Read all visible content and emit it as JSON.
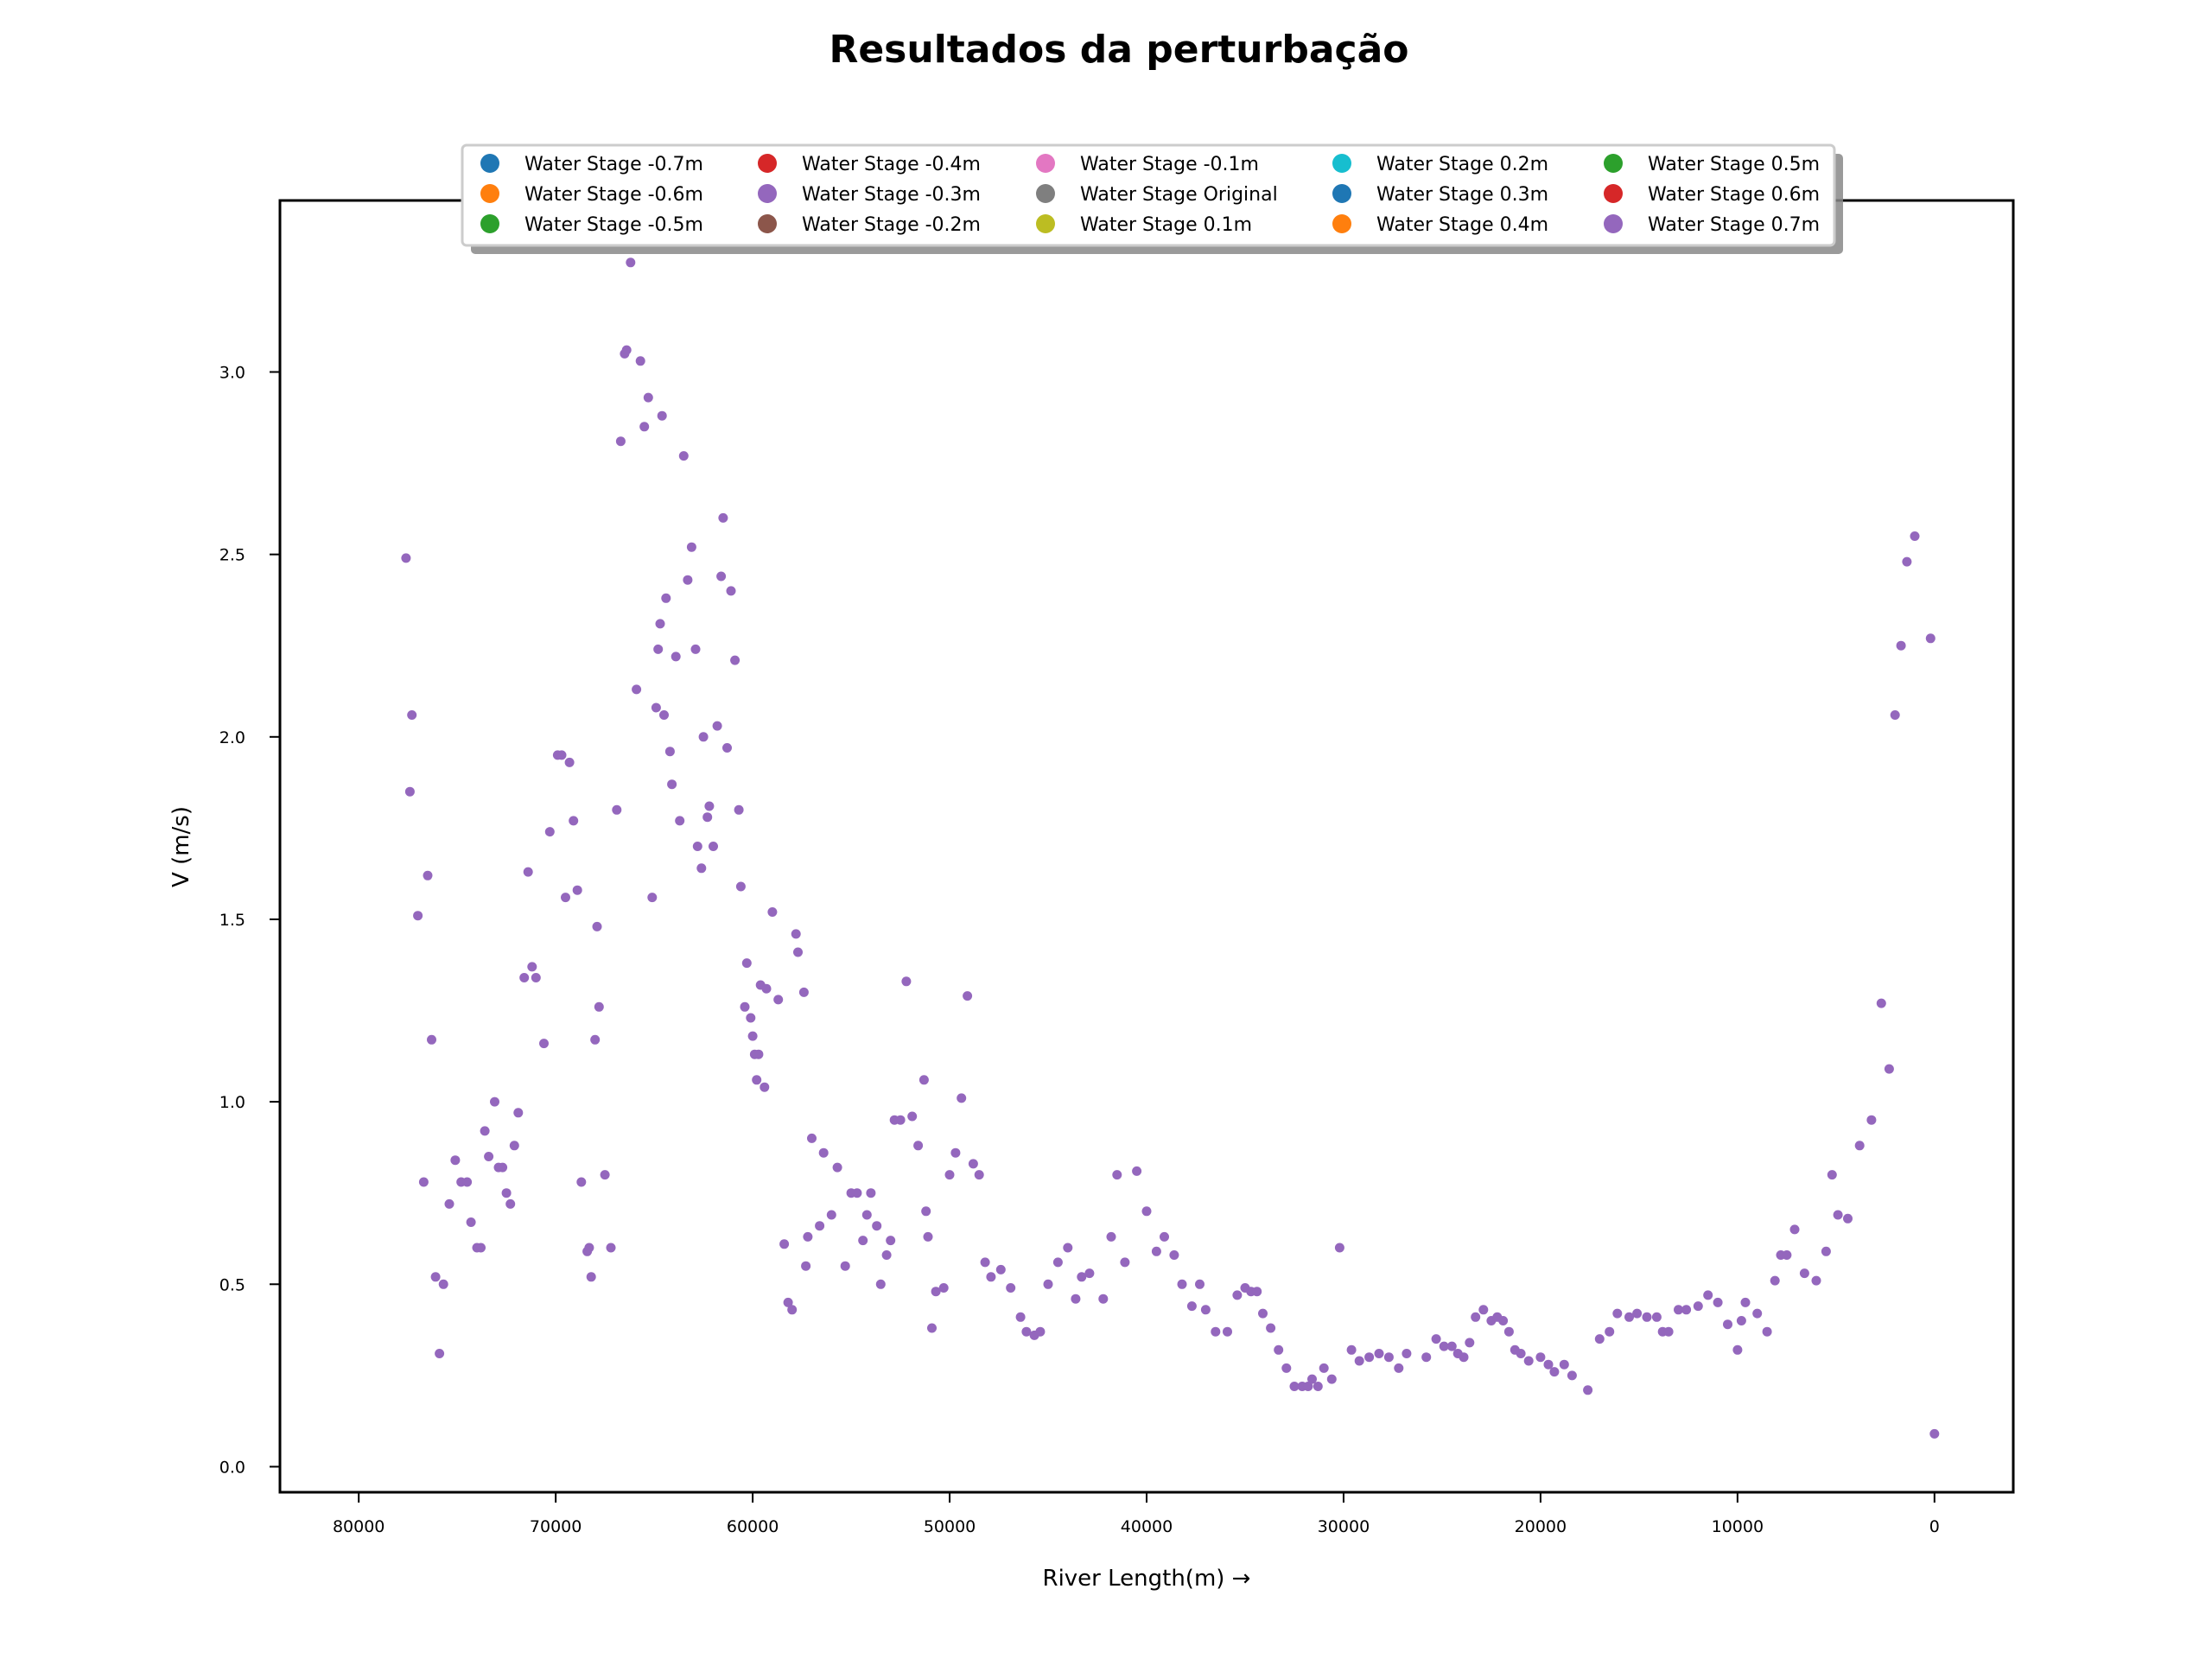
{
  "chart_data": {
    "type": "scatter",
    "title": "Resultados da perturbação",
    "xlabel": "River Length(m) →",
    "ylabel": "V (m/s)",
    "xlim": [
      84000,
      -4000
    ],
    "ylim": [
      -0.07,
      3.47
    ],
    "x_inverted": true,
    "x_ticks": [
      80000,
      70000,
      60000,
      50000,
      40000,
      30000,
      20000,
      10000,
      0
    ],
    "y_ticks": [
      0.0,
      0.5,
      1.0,
      1.5,
      2.0,
      2.5,
      3.0
    ],
    "x_tick_labels": [
      "80000",
      "70000",
      "60000",
      "50000",
      "40000",
      "30000",
      "20000",
      "10000",
      "0"
    ],
    "y_tick_labels": [
      "0.0",
      "0.5",
      "1.0",
      "1.5",
      "2.0",
      "2.5",
      "3.0"
    ],
    "grid": false,
    "legend_position": "top-center",
    "legend_columns": 5,
    "series": [
      {
        "name": "Water Stage -0.7m",
        "color": "#1f77b4"
      },
      {
        "name": "Water Stage -0.6m",
        "color": "#ff7f0e"
      },
      {
        "name": "Water Stage -0.5m",
        "color": "#2ca02c"
      },
      {
        "name": "Water Stage -0.4m",
        "color": "#d62728"
      },
      {
        "name": "Water Stage -0.3m",
        "color": "#9467bd"
      },
      {
        "name": "Water Stage -0.2m",
        "color": "#8c564b"
      },
      {
        "name": "Water Stage -0.1m",
        "color": "#e377c2"
      },
      {
        "name": "Water Stage Original",
        "color": "#7f7f7f"
      },
      {
        "name": "Water Stage 0.1m",
        "color": "#bcbd22"
      },
      {
        "name": "Water Stage 0.2m",
        "color": "#17becf"
      },
      {
        "name": "Water Stage 0.3m",
        "color": "#1f77b4"
      },
      {
        "name": "Water Stage 0.4m",
        "color": "#ff7f0e"
      },
      {
        "name": "Water Stage 0.5m",
        "color": "#2ca02c"
      },
      {
        "name": "Water Stage 0.6m",
        "color": "#d62728"
      },
      {
        "name": "Water Stage 0.7m",
        "color": "#9467bd"
      }
    ],
    "visible_series_color": "#9467bd",
    "points": [
      [
        77600,
        2.49
      ],
      [
        77400,
        1.85
      ],
      [
        77300,
        2.06
      ],
      [
        77000,
        1.51
      ],
      [
        76700,
        0.78
      ],
      [
        76500,
        1.62
      ],
      [
        76300,
        1.17
      ],
      [
        76100,
        0.52
      ],
      [
        75900,
        0.31
      ],
      [
        75700,
        0.5
      ],
      [
        75400,
        0.72
      ],
      [
        75100,
        0.84
      ],
      [
        74800,
        0.78
      ],
      [
        74500,
        0.78
      ],
      [
        74300,
        0.67
      ],
      [
        74000,
        0.6
      ],
      [
        73800,
        0.6
      ],
      [
        73600,
        0.92
      ],
      [
        73400,
        0.85
      ],
      [
        73100,
        1.0
      ],
      [
        72900,
        0.82
      ],
      [
        72700,
        0.82
      ],
      [
        72500,
        0.75
      ],
      [
        72300,
        0.72
      ],
      [
        72100,
        0.88
      ],
      [
        71900,
        0.97
      ],
      [
        71600,
        1.34
      ],
      [
        71400,
        1.63
      ],
      [
        71200,
        1.37
      ],
      [
        71000,
        1.34
      ],
      [
        70600,
        1.16
      ],
      [
        70300,
        1.74
      ],
      [
        69900,
        1.95
      ],
      [
        69700,
        1.95
      ],
      [
        69500,
        1.56
      ],
      [
        69300,
        1.93
      ],
      [
        69100,
        1.77
      ],
      [
        68900,
        1.58
      ],
      [
        68700,
        0.78
      ],
      [
        68400,
        0.59
      ],
      [
        68300,
        0.6
      ],
      [
        68200,
        0.52
      ],
      [
        68000,
        1.17
      ],
      [
        67900,
        1.48
      ],
      [
        67800,
        1.26
      ],
      [
        67500,
        0.8
      ],
      [
        67200,
        0.6
      ],
      [
        66900,
        1.8
      ],
      [
        66700,
        2.81
      ],
      [
        66500,
        3.05
      ],
      [
        66400,
        3.06
      ],
      [
        66200,
        3.3
      ],
      [
        65900,
        2.13
      ],
      [
        65700,
        3.03
      ],
      [
        65500,
        2.85
      ],
      [
        65300,
        2.93
      ],
      [
        65100,
        1.56
      ],
      [
        64900,
        2.08
      ],
      [
        64800,
        2.24
      ],
      [
        64700,
        2.31
      ],
      [
        64600,
        2.88
      ],
      [
        64500,
        2.06
      ],
      [
        64400,
        2.38
      ],
      [
        64200,
        1.96
      ],
      [
        64100,
        1.87
      ],
      [
        63900,
        2.22
      ],
      [
        63700,
        1.77
      ],
      [
        63500,
        2.77
      ],
      [
        63300,
        2.43
      ],
      [
        63100,
        2.52
      ],
      [
        62900,
        2.24
      ],
      [
        62800,
        1.7
      ],
      [
        62600,
        1.64
      ],
      [
        62500,
        2.0
      ],
      [
        62300,
        1.78
      ],
      [
        62200,
        1.81
      ],
      [
        62000,
        1.7
      ],
      [
        61800,
        2.03
      ],
      [
        61600,
        2.44
      ],
      [
        61500,
        2.6
      ],
      [
        61300,
        1.97
      ],
      [
        61100,
        2.4
      ],
      [
        60900,
        2.21
      ],
      [
        60700,
        1.8
      ],
      [
        60600,
        1.59
      ],
      [
        60400,
        1.26
      ],
      [
        60300,
        1.38
      ],
      [
        60100,
        1.23
      ],
      [
        60000,
        1.18
      ],
      [
        59900,
        1.13
      ],
      [
        59800,
        1.06
      ],
      [
        59700,
        1.13
      ],
      [
        59600,
        1.32
      ],
      [
        59400,
        1.04
      ],
      [
        59300,
        1.31
      ],
      [
        59000,
        1.52
      ],
      [
        58700,
        1.28
      ],
      [
        58400,
        0.61
      ],
      [
        58200,
        0.45
      ],
      [
        58000,
        0.43
      ],
      [
        57800,
        1.46
      ],
      [
        57700,
        1.41
      ],
      [
        57400,
        1.3
      ],
      [
        57300,
        0.55
      ],
      [
        57200,
        0.63
      ],
      [
        57000,
        0.9
      ],
      [
        56600,
        0.66
      ],
      [
        56400,
        0.86
      ],
      [
        56000,
        0.69
      ],
      [
        55700,
        0.82
      ],
      [
        55300,
        0.55
      ],
      [
        55000,
        0.75
      ],
      [
        54700,
        0.75
      ],
      [
        54400,
        0.62
      ],
      [
        54200,
        0.69
      ],
      [
        54000,
        0.75
      ],
      [
        53700,
        0.66
      ],
      [
        53500,
        0.5
      ],
      [
        53200,
        0.58
      ],
      [
        53000,
        0.62
      ],
      [
        52800,
        0.95
      ],
      [
        52500,
        0.95
      ],
      [
        52200,
        1.33
      ],
      [
        51900,
        0.96
      ],
      [
        51600,
        0.88
      ],
      [
        51300,
        1.06
      ],
      [
        51200,
        0.7
      ],
      [
        51100,
        0.63
      ],
      [
        50900,
        0.38
      ],
      [
        50700,
        0.48
      ],
      [
        50300,
        0.49
      ],
      [
        50000,
        0.8
      ],
      [
        49700,
        0.86
      ],
      [
        49400,
        1.01
      ],
      [
        49100,
        1.29
      ],
      [
        48800,
        0.83
      ],
      [
        48500,
        0.8
      ],
      [
        48200,
        0.56
      ],
      [
        47900,
        0.52
      ],
      [
        47400,
        0.54
      ],
      [
        46900,
        0.49
      ],
      [
        46400,
        0.41
      ],
      [
        46100,
        0.37
      ],
      [
        45700,
        0.36
      ],
      [
        45400,
        0.37
      ],
      [
        45000,
        0.5
      ],
      [
        44500,
        0.56
      ],
      [
        44000,
        0.6
      ],
      [
        43600,
        0.46
      ],
      [
        43300,
        0.52
      ],
      [
        42900,
        0.53
      ],
      [
        42200,
        0.46
      ],
      [
        41800,
        0.63
      ],
      [
        41500,
        0.8
      ],
      [
        41100,
        0.56
      ],
      [
        40500,
        0.81
      ],
      [
        40000,
        0.7
      ],
      [
        39500,
        0.59
      ],
      [
        39100,
        0.63
      ],
      [
        38600,
        0.58
      ],
      [
        38200,
        0.5
      ],
      [
        37700,
        0.44
      ],
      [
        37300,
        0.5
      ],
      [
        37000,
        0.43
      ],
      [
        36500,
        0.37
      ],
      [
        35900,
        0.37
      ],
      [
        35400,
        0.47
      ],
      [
        35000,
        0.49
      ],
      [
        34700,
        0.48
      ],
      [
        34400,
        0.48
      ],
      [
        34100,
        0.42
      ],
      [
        33700,
        0.38
      ],
      [
        33300,
        0.32
      ],
      [
        32900,
        0.27
      ],
      [
        32500,
        0.22
      ],
      [
        32100,
        0.22
      ],
      [
        31800,
        0.22
      ],
      [
        31600,
        0.24
      ],
      [
        31300,
        0.22
      ],
      [
        31000,
        0.27
      ],
      [
        30600,
        0.24
      ],
      [
        30200,
        0.6
      ],
      [
        29600,
        0.32
      ],
      [
        29200,
        0.29
      ],
      [
        28700,
        0.3
      ],
      [
        28200,
        0.31
      ],
      [
        27700,
        0.3
      ],
      [
        27200,
        0.27
      ],
      [
        26800,
        0.31
      ],
      [
        25800,
        0.3
      ],
      [
        25300,
        0.35
      ],
      [
        24900,
        0.33
      ],
      [
        24500,
        0.33
      ],
      [
        24200,
        0.31
      ],
      [
        23900,
        0.3
      ],
      [
        23600,
        0.34
      ],
      [
        23300,
        0.41
      ],
      [
        22900,
        0.43
      ],
      [
        22500,
        0.4
      ],
      [
        22200,
        0.41
      ],
      [
        21900,
        0.4
      ],
      [
        21600,
        0.37
      ],
      [
        21300,
        0.32
      ],
      [
        21000,
        0.31
      ],
      [
        20600,
        0.29
      ],
      [
        20000,
        0.3
      ],
      [
        19600,
        0.28
      ],
      [
        19300,
        0.26
      ],
      [
        18800,
        0.28
      ],
      [
        18400,
        0.25
      ],
      [
        17600,
        0.21
      ],
      [
        17000,
        0.35
      ],
      [
        16500,
        0.37
      ],
      [
        16100,
        0.42
      ],
      [
        15500,
        0.41
      ],
      [
        15100,
        0.42
      ],
      [
        14600,
        0.41
      ],
      [
        14100,
        0.41
      ],
      [
        13800,
        0.37
      ],
      [
        13500,
        0.37
      ],
      [
        13000,
        0.43
      ],
      [
        12600,
        0.43
      ],
      [
        12000,
        0.44
      ],
      [
        11500,
        0.47
      ],
      [
        11000,
        0.45
      ],
      [
        10500,
        0.39
      ],
      [
        10000,
        0.32
      ],
      [
        9800,
        0.4
      ],
      [
        9600,
        0.45
      ],
      [
        9000,
        0.42
      ],
      [
        8500,
        0.37
      ],
      [
        8100,
        0.51
      ],
      [
        7800,
        0.58
      ],
      [
        7500,
        0.58
      ],
      [
        7100,
        0.65
      ],
      [
        6600,
        0.53
      ],
      [
        6000,
        0.51
      ],
      [
        5500,
        0.59
      ],
      [
        5200,
        0.8
      ],
      [
        4900,
        0.69
      ],
      [
        4400,
        0.68
      ],
      [
        3800,
        0.88
      ],
      [
        3200,
        0.95
      ],
      [
        2700,
        1.27
      ],
      [
        2300,
        1.09
      ],
      [
        2000,
        2.06
      ],
      [
        1700,
        2.25
      ],
      [
        1400,
        2.48
      ],
      [
        1000,
        2.55
      ],
      [
        200,
        2.27
      ],
      [
        0,
        0.09
      ]
    ]
  }
}
